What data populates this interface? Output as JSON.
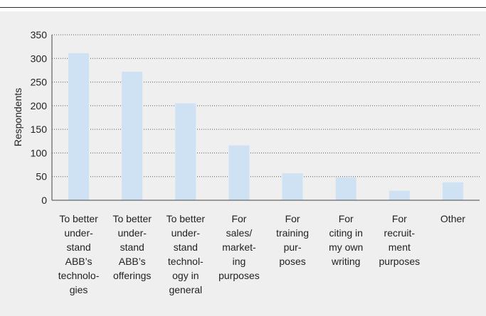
{
  "chart_data": {
    "type": "bar",
    "ylabel": "Respondents",
    "xlabel": "",
    "ylim": [
      0,
      350
    ],
    "yticks": [
      0,
      50,
      100,
      150,
      200,
      250,
      300,
      350
    ],
    "grid": "horizontal dotted",
    "bar_color": "#cfe2f3",
    "categories": [
      [
        "To better",
        "under-",
        "stand",
        "ABB’s",
        "technolo-",
        "gies"
      ],
      [
        "To better",
        "under-",
        "stand",
        "ABB’s",
        "offerings"
      ],
      [
        "To better",
        "under-",
        "stand",
        "technol-",
        "ogy in",
        "general"
      ],
      [
        "For",
        "sales/",
        "market-",
        "ing",
        "purposes"
      ],
      [
        "For",
        "training",
        "pur-",
        "poses"
      ],
      [
        "For",
        "citing in",
        "my own",
        "writing"
      ],
      [
        "For",
        "recruit-",
        "ment",
        "purposes"
      ],
      [
        "Other"
      ]
    ],
    "values": [
      311,
      272,
      205,
      116,
      57,
      48,
      20,
      38
    ]
  }
}
